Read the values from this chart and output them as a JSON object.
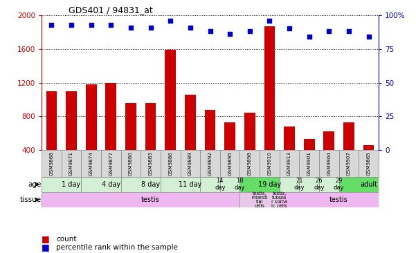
{
  "title": "GDS401 / 94831_at",
  "samples": [
    "GSM9868",
    "GSM9871",
    "GSM9874",
    "GSM9877",
    "GSM9880",
    "GSM9883",
    "GSM9886",
    "GSM9889",
    "GSM9892",
    "GSM9895",
    "GSM9898",
    "GSM9910",
    "GSM9913",
    "GSM9901",
    "GSM9904",
    "GSM9907",
    "GSM9865"
  ],
  "counts": [
    1100,
    1100,
    1180,
    1200,
    960,
    960,
    1590,
    1060,
    880,
    730,
    840,
    1870,
    680,
    530,
    620,
    730,
    460
  ],
  "percentile": [
    93,
    93,
    93,
    93,
    91,
    91,
    96,
    91,
    88,
    86,
    88,
    96,
    90,
    84,
    88,
    88,
    84
  ],
  "bar_color": "#cc0000",
  "dot_color": "#0000cc",
  "left_axis_color": "#cc0000",
  "right_axis_color": "#0000cc",
  "ylim_left": [
    400,
    2000
  ],
  "ylim_right": [
    0,
    100
  ],
  "yticks_left": [
    400,
    800,
    1200,
    1600,
    2000
  ],
  "yticks_right": [
    0,
    25,
    50,
    75,
    100
  ],
  "age_groups": [
    {
      "label": "1 day",
      "start": 0,
      "end": 2,
      "green": false
    },
    {
      "label": "4 day",
      "start": 2,
      "end": 4,
      "green": false
    },
    {
      "label": "8 day",
      "start": 4,
      "end": 6,
      "green": false
    },
    {
      "label": "11 day",
      "start": 6,
      "end": 8,
      "green": false
    },
    {
      "label": "14\nday",
      "start": 8,
      "end": 9,
      "green": false
    },
    {
      "label": "18\nday",
      "start": 9,
      "end": 10,
      "green": false
    },
    {
      "label": "19 day",
      "start": 10,
      "end": 12,
      "green": true
    },
    {
      "label": "21\nday",
      "start": 12,
      "end": 13,
      "green": false
    },
    {
      "label": "26\nday",
      "start": 13,
      "end": 14,
      "green": false
    },
    {
      "label": "29\nday",
      "start": 14,
      "end": 15,
      "green": false
    },
    {
      "label": "adult",
      "start": 15,
      "end": 17,
      "green": true
    }
  ],
  "tissue_groups": [
    {
      "label": "testis",
      "start": 0,
      "end": 10,
      "highlight": false
    },
    {
      "label": "testis,\nintersti\ntial\ncells",
      "start": 10,
      "end": 11,
      "highlight": true
    },
    {
      "label": "testis,\ntubula\nr soma\nic cells",
      "start": 11,
      "end": 12,
      "highlight": true
    },
    {
      "label": "testis",
      "start": 12,
      "end": 17,
      "highlight": false
    }
  ],
  "color_age_normal": "#d4f0d4",
  "color_age_green": "#66dd66",
  "color_tissue_normal": "#f0b8f0",
  "color_tissue_highlight": "#e8c8e8",
  "color_sample_bg": "#d8d8d8",
  "color_sample_border": "#888888"
}
